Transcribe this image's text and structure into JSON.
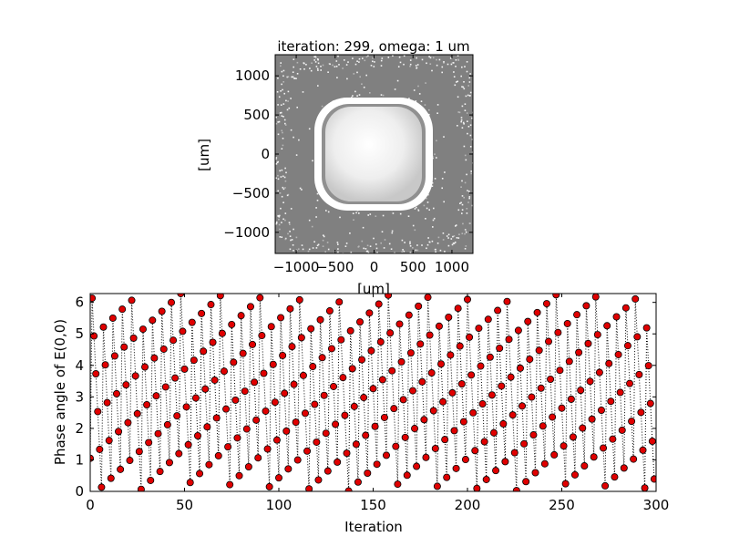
{
  "chart_data": [
    {
      "type": "heatmap",
      "title": "iteration: 299, omega: 1 um",
      "xlabel": "[um]",
      "ylabel": "[um]",
      "xlim": [
        -1270,
        1270
      ],
      "ylim": [
        -1270,
        1270
      ],
      "xticks": [
        -1000,
        -500,
        0,
        500,
        1000
      ],
      "yticks": [
        1000,
        500,
        0,
        -500,
        -1000
      ],
      "xticklabels": [
        "−1000",
        "−500",
        "0",
        "500",
        "1000"
      ],
      "yticklabels": [
        "1000",
        "500",
        "0",
        "−500",
        "−1000"
      ],
      "colormap": "gray",
      "background_color": "#808080",
      "description_values": {
        "central_disk_radius_um": 650,
        "ring_inner_radius_um": 700,
        "ring_outer_radius_um": 800
      }
    },
    {
      "type": "scatter",
      "title": "",
      "xlabel": "Iteration",
      "ylabel": "Phase angle of E(0,0)",
      "xlim": [
        0,
        300
      ],
      "ylim": [
        0,
        6.28
      ],
      "xticks": [
        0,
        50,
        100,
        150,
        200,
        250,
        300
      ],
      "yticks": [
        0,
        1,
        2,
        3,
        4,
        5,
        6
      ],
      "xticklabels": [
        "0",
        "50",
        "100",
        "150",
        "200",
        "250",
        "300"
      ],
      "yticklabels": [
        "0",
        "1",
        "2",
        "3",
        "4",
        "5",
        "6"
      ],
      "marker_color": "#e00000",
      "line_style": "dotted",
      "line_color": "#000000",
      "series": [
        {
          "x_start": 0,
          "x_step": 1,
          "count": 300,
          "phase_start": 1.05,
          "phase_step": -1.2
        }
      ]
    }
  ]
}
